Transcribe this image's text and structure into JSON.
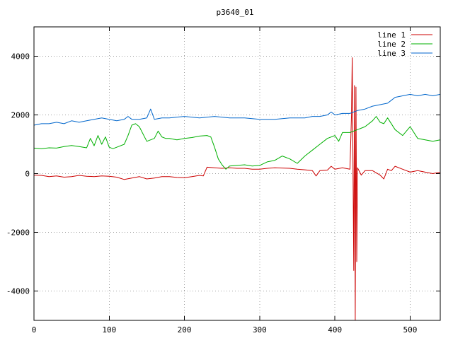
{
  "chart_data": {
    "type": "line",
    "title": "p3640_01",
    "xlabel": "",
    "ylabel": "",
    "xlim": [
      0,
      540
    ],
    "ylim": [
      -5000,
      5000
    ],
    "x_ticks": [
      0,
      100,
      200,
      300,
      400,
      500
    ],
    "y_ticks": [
      -4000,
      -2000,
      0,
      2000,
      4000
    ],
    "x_tick_labels": [
      "0",
      "100",
      "200",
      "300",
      "400",
      "500"
    ],
    "y_tick_labels": [
      "-4000",
      "-2000",
      "0",
      "2000",
      "4000"
    ],
    "grid": true,
    "legend_position": "top-right",
    "series": [
      {
        "name": "line 1",
        "color": "#cc0000",
        "x": [
          0,
          10,
          20,
          30,
          40,
          50,
          60,
          70,
          80,
          90,
          100,
          110,
          120,
          130,
          140,
          150,
          160,
          170,
          180,
          190,
          200,
          210,
          220,
          225,
          230,
          240,
          250,
          260,
          270,
          280,
          290,
          300,
          310,
          320,
          330,
          340,
          350,
          360,
          370,
          375,
          380,
          390,
          395,
          400,
          410,
          420,
          422,
          423,
          425,
          426,
          427,
          428,
          429,
          430,
          435,
          440,
          450,
          460,
          465,
          470,
          475,
          480,
          490,
          500,
          510,
          520,
          530,
          540
        ],
        "y": [
          -50,
          -60,
          -100,
          -80,
          -120,
          -100,
          -60,
          -90,
          -100,
          -80,
          -90,
          -120,
          -200,
          -150,
          -100,
          -180,
          -150,
          -100,
          -100,
          -130,
          -140,
          -100,
          -60,
          -80,
          220,
          200,
          180,
          200,
          180,
          180,
          150,
          150,
          180,
          200,
          190,
          180,
          150,
          130,
          100,
          -80,
          100,
          120,
          250,
          150,
          200,
          150,
          2000,
          3950,
          -3300,
          3000,
          -5000,
          2950,
          -3000,
          200,
          -50,
          100,
          100,
          -50,
          -180,
          150,
          100,
          250,
          150,
          50,
          100,
          50,
          0,
          50
        ]
      },
      {
        "name": "line 2",
        "color": "#00b000",
        "x": [
          0,
          10,
          20,
          30,
          40,
          50,
          60,
          70,
          75,
          80,
          85,
          90,
          95,
          100,
          105,
          110,
          120,
          125,
          130,
          135,
          140,
          150,
          160,
          165,
          170,
          175,
          180,
          190,
          200,
          210,
          220,
          230,
          235,
          240,
          245,
          250,
          255,
          260,
          270,
          280,
          290,
          300,
          310,
          320,
          330,
          340,
          350,
          360,
          370,
          380,
          390,
          400,
          405,
          410,
          420,
          430,
          440,
          450,
          455,
          460,
          465,
          470,
          480,
          490,
          500,
          510,
          520,
          530,
          540
        ],
        "y": [
          870,
          850,
          880,
          870,
          920,
          960,
          920,
          880,
          1200,
          950,
          1300,
          1000,
          1250,
          900,
          850,
          900,
          1000,
          1300,
          1650,
          1700,
          1600,
          1100,
          1200,
          1450,
          1250,
          1200,
          1200,
          1150,
          1200,
          1230,
          1280,
          1300,
          1250,
          900,
          500,
          300,
          150,
          260,
          280,
          300,
          260,
          280,
          400,
          450,
          600,
          500,
          350,
          600,
          800,
          1000,
          1200,
          1300,
          1100,
          1400,
          1400,
          1500,
          1600,
          1800,
          1950,
          1750,
          1700,
          1900,
          1500,
          1300,
          1600,
          1200,
          1150,
          1100,
          1150
        ]
      },
      {
        "name": "line 3",
        "color": "#0066cc",
        "x": [
          0,
          10,
          20,
          30,
          40,
          50,
          60,
          70,
          80,
          90,
          100,
          110,
          120,
          125,
          130,
          140,
          150,
          155,
          160,
          170,
          180,
          200,
          220,
          240,
          260,
          280,
          300,
          320,
          340,
          360,
          370,
          380,
          390,
          395,
          400,
          410,
          420,
          430,
          440,
          450,
          460,
          470,
          475,
          480,
          490,
          500,
          510,
          520,
          530,
          540
        ],
        "y": [
          1650,
          1700,
          1700,
          1750,
          1700,
          1800,
          1750,
          1800,
          1850,
          1900,
          1850,
          1800,
          1850,
          1950,
          1850,
          1850,
          1900,
          2200,
          1850,
          1900,
          1900,
          1950,
          1900,
          1950,
          1900,
          1900,
          1850,
          1850,
          1900,
          1900,
          1950,
          1950,
          2000,
          2100,
          2000,
          2050,
          2050,
          2150,
          2200,
          2300,
          2350,
          2400,
          2500,
          2600,
          2650,
          2700,
          2650,
          2700,
          2650,
          2700
        ]
      }
    ]
  }
}
